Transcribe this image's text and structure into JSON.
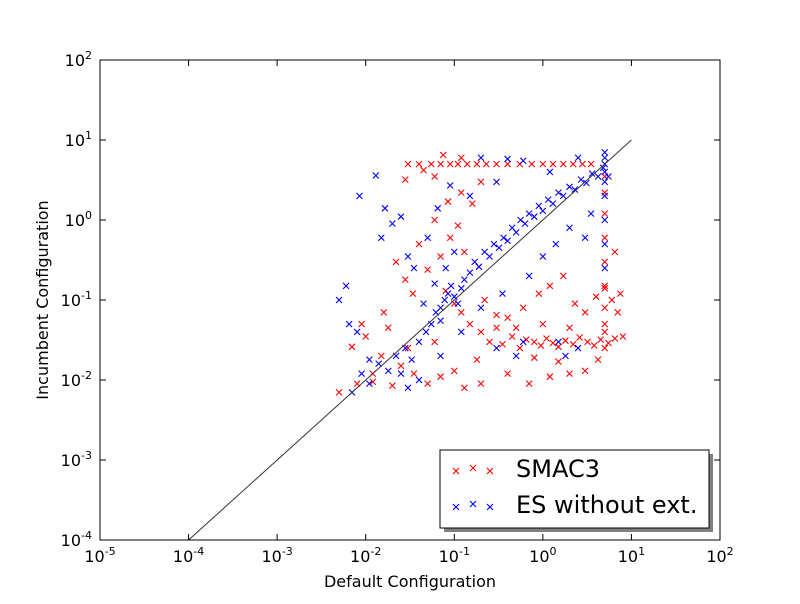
{
  "chart_data": {
    "type": "scatter",
    "title": "",
    "xlabel": "Default Configuration",
    "ylabel": "Incumbent Configuration",
    "xscale": "log",
    "yscale": "log",
    "xlim": [
      1e-05,
      100
    ],
    "ylim": [
      0.0001,
      100
    ],
    "x_ticks": [
      {
        "base": "10",
        "exp": "-5"
      },
      {
        "base": "10",
        "exp": "-4"
      },
      {
        "base": "10",
        "exp": "-3"
      },
      {
        "base": "10",
        "exp": "-2"
      },
      {
        "base": "10",
        "exp": "-1"
      },
      {
        "base": "10",
        "exp": "0"
      },
      {
        "base": "10",
        "exp": "1"
      },
      {
        "base": "10",
        "exp": "2"
      }
    ],
    "y_ticks": [
      {
        "base": "10",
        "exp": "-4"
      },
      {
        "base": "10",
        "exp": "-3"
      },
      {
        "base": "10",
        "exp": "-2"
      },
      {
        "base": "10",
        "exp": "-1"
      },
      {
        "base": "10",
        "exp": "0"
      },
      {
        "base": "10",
        "exp": "1"
      },
      {
        "base": "10",
        "exp": "2"
      }
    ],
    "grid": false,
    "legend_position": "lower-right",
    "diagonal": {
      "from": [
        0.0001,
        0.0001
      ],
      "to": [
        10,
        10
      ],
      "color": "#333333"
    },
    "series": [
      {
        "name": "SMAC3",
        "color": "#ff0000",
        "marker": "x",
        "points": [
          [
            0.005,
            0.007
          ],
          [
            0.008,
            0.009
          ],
          [
            0.012,
            0.0095
          ],
          [
            0.02,
            0.0085
          ],
          [
            0.015,
            0.02
          ],
          [
            0.025,
            0.015
          ],
          [
            0.035,
            0.012
          ],
          [
            0.05,
            0.009
          ],
          [
            0.07,
            0.011
          ],
          [
            0.1,
            0.013
          ],
          [
            0.13,
            0.008
          ],
          [
            0.2,
            0.009
          ],
          [
            0.4,
            0.012
          ],
          [
            0.7,
            0.009
          ],
          [
            1.2,
            0.011
          ],
          [
            2.0,
            0.012
          ],
          [
            3.0,
            0.013
          ],
          [
            0.009,
            0.05
          ],
          [
            0.016,
            0.07
          ],
          [
            0.028,
            0.18
          ],
          [
            0.04,
            0.5
          ],
          [
            0.06,
            1.0
          ],
          [
            0.085,
            1.7
          ],
          [
            0.12,
            2.2
          ],
          [
            0.16,
            1.6
          ],
          [
            0.05,
            0.24
          ],
          [
            0.07,
            0.35
          ],
          [
            0.09,
            0.6
          ],
          [
            0.11,
            0.85
          ],
          [
            0.13,
            0.4
          ],
          [
            0.08,
            0.13
          ],
          [
            0.1,
            0.09
          ],
          [
            0.12,
            0.07
          ],
          [
            0.15,
            0.05
          ],
          [
            0.2,
            0.04
          ],
          [
            0.25,
            0.03
          ],
          [
            0.3,
            0.045
          ],
          [
            0.35,
            0.028
          ],
          [
            0.45,
            0.035
          ],
          [
            0.55,
            0.025
          ],
          [
            0.65,
            0.032
          ],
          [
            0.8,
            0.03
          ],
          [
            0.95,
            0.027
          ],
          [
            1.1,
            0.033
          ],
          [
            1.3,
            0.029
          ],
          [
            1.5,
            0.026
          ],
          [
            1.8,
            0.031
          ],
          [
            2.2,
            0.028
          ],
          [
            2.6,
            0.034
          ],
          [
            3.2,
            0.03
          ],
          [
            3.8,
            0.027
          ],
          [
            4.5,
            0.032
          ],
          [
            5.5,
            0.029
          ],
          [
            6.5,
            0.033
          ],
          [
            8.0,
            0.035
          ],
          [
            0.4,
            0.06
          ],
          [
            0.6,
            0.08
          ],
          [
            0.9,
            0.12
          ],
          [
            1.2,
            0.15
          ],
          [
            1.7,
            0.2
          ],
          [
            2.3,
            0.09
          ],
          [
            3.0,
            0.07
          ],
          [
            4.0,
            0.11
          ],
          [
            5.0,
            0.14
          ],
          [
            6.0,
            0.1
          ],
          [
            1.0,
            0.05
          ],
          [
            2.0,
            0.045
          ],
          [
            0.5,
            0.045
          ],
          [
            0.3,
            0.065
          ],
          [
            0.22,
            0.1
          ],
          [
            0.03,
            5.0
          ],
          [
            0.04,
            5.0
          ],
          [
            0.055,
            5.0
          ],
          [
            0.07,
            5.0
          ],
          [
            0.09,
            5.0
          ],
          [
            0.11,
            5.0
          ],
          [
            0.14,
            5.0
          ],
          [
            0.18,
            5.0
          ],
          [
            0.23,
            5.0
          ],
          [
            0.3,
            5.0
          ],
          [
            0.4,
            5.0
          ],
          [
            0.55,
            5.0
          ],
          [
            0.75,
            5.0
          ],
          [
            1.0,
            5.0
          ],
          [
            1.3,
            5.0
          ],
          [
            1.7,
            5.0
          ],
          [
            2.2,
            5.0
          ],
          [
            2.8,
            5.0
          ],
          [
            3.5,
            5.0
          ],
          [
            0.075,
            6.5
          ],
          [
            0.12,
            6.0
          ],
          [
            0.06,
            3.5
          ],
          [
            0.2,
            3.0
          ],
          [
            0.028,
            3.2
          ],
          [
            0.045,
            4.2
          ],
          [
            5.0,
            0.08
          ],
          [
            5.0,
            0.05
          ],
          [
            5.0,
            0.15
          ],
          [
            5.0,
            0.3
          ],
          [
            5.0,
            0.6
          ],
          [
            5.0,
            1.2
          ],
          [
            5.0,
            2.2
          ],
          [
            5.0,
            3.5
          ],
          [
            5.0,
            0.04
          ],
          [
            5.0,
            0.025
          ],
          [
            7.5,
            0.12
          ],
          [
            7.0,
            0.07
          ],
          [
            6.5,
            0.4
          ],
          [
            4.2,
            0.018
          ],
          [
            1.5,
            0.017
          ],
          [
            0.8,
            0.019
          ],
          [
            0.18,
            0.018
          ],
          [
            0.03,
            0.025
          ],
          [
            0.06,
            0.03
          ],
          [
            0.012,
            0.012
          ],
          [
            0.007,
            0.026
          ],
          [
            0.01,
            0.035
          ],
          [
            0.018,
            0.045
          ],
          [
            0.022,
            0.3
          ],
          [
            0.034,
            0.12
          ]
        ]
      },
      {
        "name": "ES without ext.",
        "color": "#0000ff",
        "marker": "x",
        "points": [
          [
            0.007,
            0.007
          ],
          [
            0.009,
            0.012
          ],
          [
            0.011,
            0.009
          ],
          [
            0.014,
            0.016
          ],
          [
            0.018,
            0.013
          ],
          [
            0.022,
            0.02
          ],
          [
            0.028,
            0.025
          ],
          [
            0.033,
            0.018
          ],
          [
            0.04,
            0.03
          ],
          [
            0.048,
            0.04
          ],
          [
            0.055,
            0.05
          ],
          [
            0.062,
            0.07
          ],
          [
            0.07,
            0.08
          ],
          [
            0.078,
            0.1
          ],
          [
            0.085,
            0.12
          ],
          [
            0.092,
            0.15
          ],
          [
            0.1,
            0.11
          ],
          [
            0.11,
            0.09
          ],
          [
            0.12,
            0.14
          ],
          [
            0.13,
            0.18
          ],
          [
            0.15,
            0.22
          ],
          [
            0.17,
            0.3
          ],
          [
            0.19,
            0.26
          ],
          [
            0.22,
            0.4
          ],
          [
            0.25,
            0.35
          ],
          [
            0.28,
            0.5
          ],
          [
            0.32,
            0.45
          ],
          [
            0.36,
            0.6
          ],
          [
            0.4,
            0.55
          ],
          [
            0.45,
            0.8
          ],
          [
            0.5,
            0.7
          ],
          [
            0.56,
            1.0
          ],
          [
            0.63,
            0.9
          ],
          [
            0.7,
            1.2
          ],
          [
            0.8,
            1.1
          ],
          [
            0.9,
            1.5
          ],
          [
            1.0,
            1.3
          ],
          [
            1.15,
            1.8
          ],
          [
            1.3,
            1.6
          ],
          [
            1.5,
            2.2
          ],
          [
            1.7,
            2.0
          ],
          [
            2.0,
            2.6
          ],
          [
            2.3,
            2.4
          ],
          [
            2.7,
            3.2
          ],
          [
            3.1,
            2.9
          ],
          [
            3.6,
            3.8
          ],
          [
            4.2,
            3.5
          ],
          [
            4.8,
            4.5
          ],
          [
            0.005,
            0.1
          ],
          [
            0.0065,
            0.05
          ],
          [
            0.006,
            0.15
          ],
          [
            0.008,
            0.04
          ],
          [
            0.0085,
            2.0
          ],
          [
            0.013,
            3.6
          ],
          [
            0.0165,
            1.4
          ],
          [
            0.02,
            0.9
          ],
          [
            0.015,
            0.6
          ],
          [
            0.025,
            1.1
          ],
          [
            0.03,
            0.35
          ],
          [
            0.035,
            0.25
          ],
          [
            0.05,
            0.6
          ],
          [
            0.065,
            1.4
          ],
          [
            0.09,
            2.7
          ],
          [
            0.15,
            2.0
          ],
          [
            0.3,
            3.0
          ],
          [
            0.6,
            5.5
          ],
          [
            1.2,
            4.0
          ],
          [
            2.5,
            6.0
          ],
          [
            0.2,
            6.0
          ],
          [
            0.4,
            5.8
          ],
          [
            5.0,
            6.0
          ],
          [
            5.0,
            5.0
          ],
          [
            5.0,
            4.0
          ],
          [
            5.0,
            3.0
          ],
          [
            5.0,
            2.0
          ],
          [
            5.0,
            1.0
          ],
          [
            5.0,
            0.5
          ],
          [
            5.0,
            0.25
          ],
          [
            5.0,
            7.0
          ],
          [
            5.5,
            3.5
          ],
          [
            0.3,
            0.025
          ],
          [
            0.5,
            0.02
          ],
          [
            1.5,
            0.03
          ],
          [
            2.5,
            0.025
          ],
          [
            1.8,
            0.02
          ],
          [
            0.6,
            0.03
          ],
          [
            0.12,
            0.04
          ],
          [
            0.07,
            0.02
          ],
          [
            0.04,
            0.01
          ],
          [
            0.03,
            0.008
          ],
          [
            0.025,
            0.012
          ],
          [
            0.011,
            0.018
          ],
          [
            0.2,
            0.08
          ],
          [
            0.35,
            0.12
          ],
          [
            0.7,
            0.2
          ],
          [
            1.0,
            0.35
          ],
          [
            1.4,
            0.5
          ],
          [
            2.0,
            0.8
          ],
          [
            3.0,
            0.6
          ],
          [
            3.5,
            1.2
          ],
          [
            0.08,
            0.25
          ],
          [
            0.1,
            0.4
          ],
          [
            0.06,
            0.16
          ],
          [
            0.045,
            0.09
          ],
          [
            0.07,
            0.055
          ]
        ]
      }
    ]
  }
}
